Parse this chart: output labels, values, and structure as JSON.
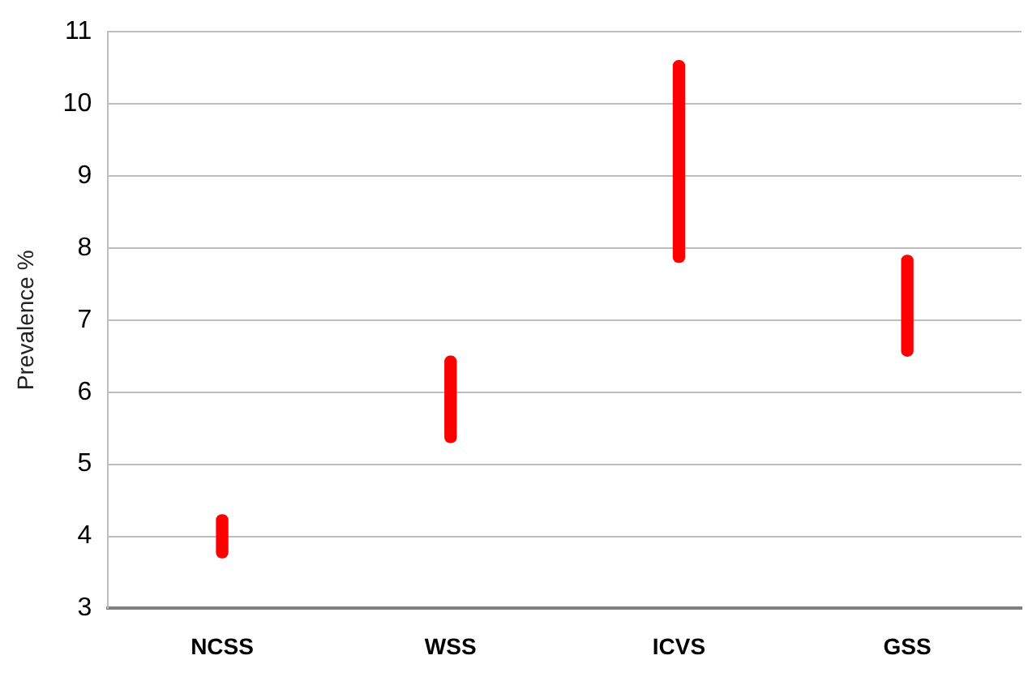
{
  "chart_data": {
    "type": "bar",
    "ylabel": "Prevalence %",
    "categories": [
      "NCSS",
      "WSS",
      "ICVS",
      "GSS"
    ],
    "base": [
      3.7,
      5.3,
      7.8,
      6.5
    ],
    "values": [
      0.6,
      1.2,
      2.8,
      1.4
    ],
    "color": "#ff0000",
    "ylim": [
      3,
      11
    ],
    "yticks": [
      3,
      4,
      5,
      6,
      7,
      8,
      9,
      10,
      11
    ],
    "grid": "y"
  }
}
